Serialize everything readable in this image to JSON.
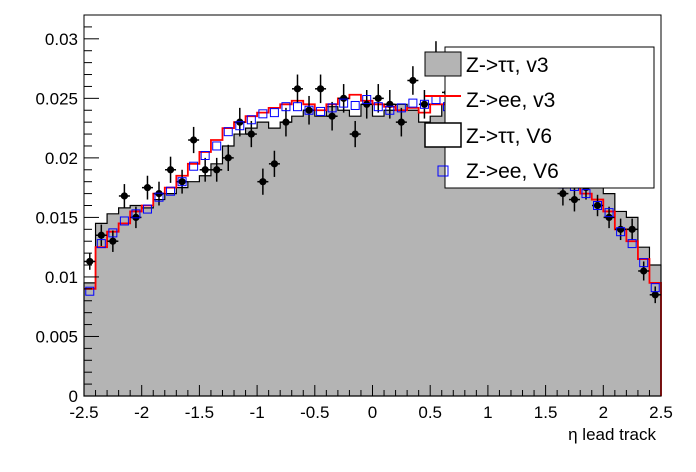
{
  "chart_data": {
    "type": "histogram",
    "title": "",
    "xlabel": "η lead track",
    "ylabel": "",
    "xlim": [
      -2.5,
      2.5
    ],
    "ylim": [
      0,
      0.032
    ],
    "bin_width": 0.1,
    "x_ticks": [
      -2.5,
      -2,
      -1.5,
      -1,
      -0.5,
      0,
      0.5,
      1,
      1.5,
      2,
      2.5
    ],
    "x_tick_labels": [
      "-2.5",
      "-2",
      "-1.5",
      "-1",
      "-0.5",
      "0",
      "0.5",
      "1",
      "1.5",
      "2",
      "2.5"
    ],
    "y_ticks": [
      0,
      0.005,
      0.01,
      0.015,
      0.02,
      0.025,
      0.03
    ],
    "y_tick_labels": [
      "0",
      "0.005",
      "0.01",
      "0.015",
      "0.02",
      "0.025",
      "0.03"
    ],
    "legend_position": "top-right",
    "series": [
      {
        "name": "Z->ττ, v3",
        "style": "filled-histogram",
        "color": "#b4b4b4",
        "values": [
          0.0095,
          0.0145,
          0.0153,
          0.0158,
          0.016,
          0.0158,
          0.0165,
          0.017,
          0.0175,
          0.018,
          0.0185,
          0.0195,
          0.021,
          0.022,
          0.0225,
          0.023,
          0.0225,
          0.023,
          0.0235,
          0.024,
          0.0235,
          0.0243,
          0.024,
          0.0235,
          0.0245,
          0.0235,
          0.024,
          0.0245,
          0.024,
          0.023,
          0.0235,
          0.0245,
          0.0255,
          0.024,
          0.0235,
          0.023,
          0.0225,
          0.022,
          0.021,
          0.02,
          0.018,
          0.0175,
          0.0185,
          0.019,
          0.0175,
          0.017,
          0.0155,
          0.015,
          0.0125,
          0.011
        ]
      },
      {
        "name": "Z->ee, v3",
        "style": "line-histogram",
        "color": "#ff0000",
        "values": [
          0.009,
          0.0125,
          0.0138,
          0.0145,
          0.0155,
          0.016,
          0.017,
          0.0175,
          0.0185,
          0.0195,
          0.0205,
          0.0215,
          0.0225,
          0.023,
          0.0235,
          0.0238,
          0.0242,
          0.0245,
          0.0248,
          0.0245,
          0.024,
          0.0245,
          0.025,
          0.0253,
          0.0248,
          0.0245,
          0.0243,
          0.024,
          0.0242,
          0.0238,
          0.0245,
          0.0245,
          0.024,
          0.0235,
          0.023,
          0.0225,
          0.022,
          0.0215,
          0.021,
          0.02,
          0.0195,
          0.0185,
          0.018,
          0.017,
          0.0165,
          0.0155,
          0.014,
          0.013,
          0.0115,
          0.0095
        ]
      },
      {
        "name": "Z->ττ, V6",
        "style": "markers-with-errors",
        "color": "#000000",
        "values": [
          0.0113,
          0.0135,
          0.013,
          0.0168,
          0.015,
          0.0175,
          0.017,
          0.019,
          0.018,
          0.0215,
          0.019,
          0.019,
          0.02,
          0.023,
          0.022,
          0.018,
          0.0195,
          0.023,
          0.0258,
          0.024,
          0.0258,
          0.0235,
          0.025,
          0.022,
          0.0245,
          0.025,
          0.0245,
          0.023,
          0.0265,
          0.0245,
          0.0285,
          0.0255,
          0.024,
          0.0265,
          0.0235,
          0.022,
          0.0215,
          0.0195,
          0.0205,
          0.0185,
          0.019,
          0.017,
          0.0165,
          0.0175,
          0.016,
          0.015,
          0.014,
          0.014,
          0.0105,
          0.0085
        ],
        "errors": [
          0.0007,
          0.0009,
          0.0009,
          0.001,
          0.0009,
          0.001,
          0.001,
          0.0011,
          0.001,
          0.0011,
          0.001,
          0.001,
          0.0011,
          0.0012,
          0.0011,
          0.0011,
          0.0011,
          0.0012,
          0.0012,
          0.0012,
          0.0012,
          0.0012,
          0.0012,
          0.0011,
          0.0012,
          0.0012,
          0.0012,
          0.0012,
          0.0012,
          0.0012,
          0.0013,
          0.0012,
          0.0012,
          0.0012,
          0.0012,
          0.0011,
          0.0011,
          0.0011,
          0.0011,
          0.001,
          0.0011,
          0.001,
          0.001,
          0.001,
          0.0009,
          0.0009,
          0.0009,
          0.0009,
          0.0008,
          0.0007
        ]
      },
      {
        "name": "Z->ee, V6",
        "style": "open-squares",
        "color": "#0000ff",
        "values": [
          0.0088,
          0.0128,
          0.0137,
          0.0147,
          0.0153,
          0.0157,
          0.0167,
          0.0172,
          0.018,
          0.0193,
          0.0202,
          0.021,
          0.0222,
          0.0227,
          0.0232,
          0.0237,
          0.0238,
          0.0243,
          0.0243,
          0.024,
          0.0239,
          0.0242,
          0.0246,
          0.0244,
          0.0249,
          0.0243,
          0.024,
          0.0242,
          0.0246,
          0.0245,
          0.0249,
          0.0243,
          0.0245,
          0.0238,
          0.0235,
          0.0226,
          0.0218,
          0.0214,
          0.0207,
          0.0196,
          0.019,
          0.0178,
          0.0176,
          0.017,
          0.016,
          0.0154,
          0.0138,
          0.0128,
          0.0112,
          0.0091
        ]
      }
    ]
  }
}
